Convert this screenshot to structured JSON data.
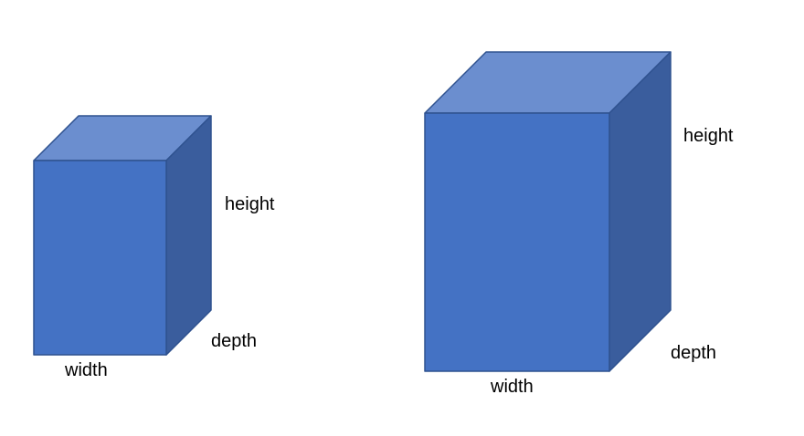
{
  "colors": {
    "front_face": "#4472c4",
    "top_face": "#6b8ecf",
    "side_face": "#3a5d9d",
    "outline": "#2f528f",
    "label_text": "#000000"
  },
  "boxes": [
    {
      "labels": {
        "height": "height",
        "width": "width",
        "depth": "depth"
      }
    },
    {
      "labels": {
        "height": "height",
        "width": "width",
        "depth": "depth"
      }
    }
  ]
}
